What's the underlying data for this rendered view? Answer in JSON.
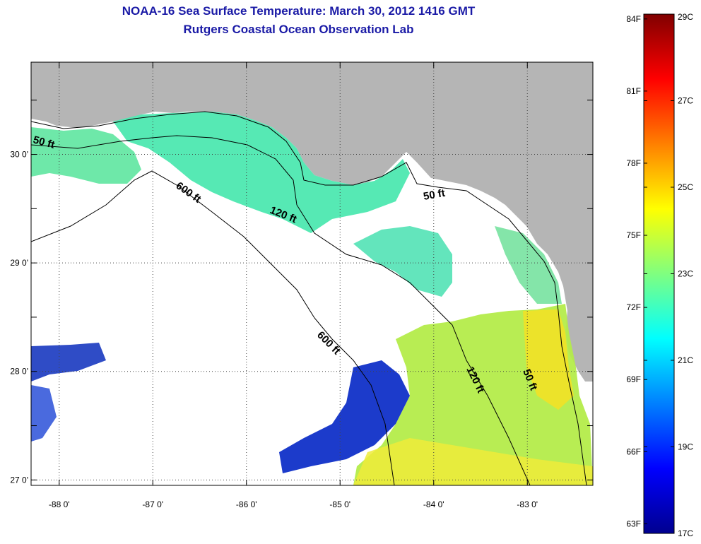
{
  "header": {
    "title": "NOAA-16 Sea Surface Temperature:  March 30, 2012 1416 GMT",
    "subtitle": "Rutgers Coastal Ocean Observation Lab"
  },
  "map": {
    "lon_ticks": [
      "-88 0'",
      "-87 0'",
      "-86 0'",
      "-85 0'",
      "-84 0'",
      "-83 0'"
    ],
    "lat_ticks": [
      "30 0'",
      "29 0'",
      "28 0'",
      "27 0'"
    ],
    "lon_range": [
      -88.3,
      -82.3
    ],
    "lat_range": [
      26.95,
      30.85
    ],
    "contour_labels": {
      "c50_west": "50 ft",
      "c50_east": "50 ft",
      "c50_south": "50 ft",
      "c120_north": "120 ft",
      "c120_south": "120 ft",
      "c600_north": "600 ft",
      "c600_south": "600 ft"
    }
  },
  "colorbar": {
    "celsius": [
      "29C",
      "27C",
      "25C",
      "23C",
      "21C",
      "19C",
      "17C"
    ],
    "fahrenheit": [
      "84F",
      "81F",
      "78F",
      "75F",
      "72F",
      "69F",
      "66F",
      "63F"
    ],
    "min_c": 17,
    "max_c": 29
  },
  "colors": {
    "land": "#b5b5b5",
    "cloud": "#ffffff",
    "title": "#1a1aa6"
  }
}
